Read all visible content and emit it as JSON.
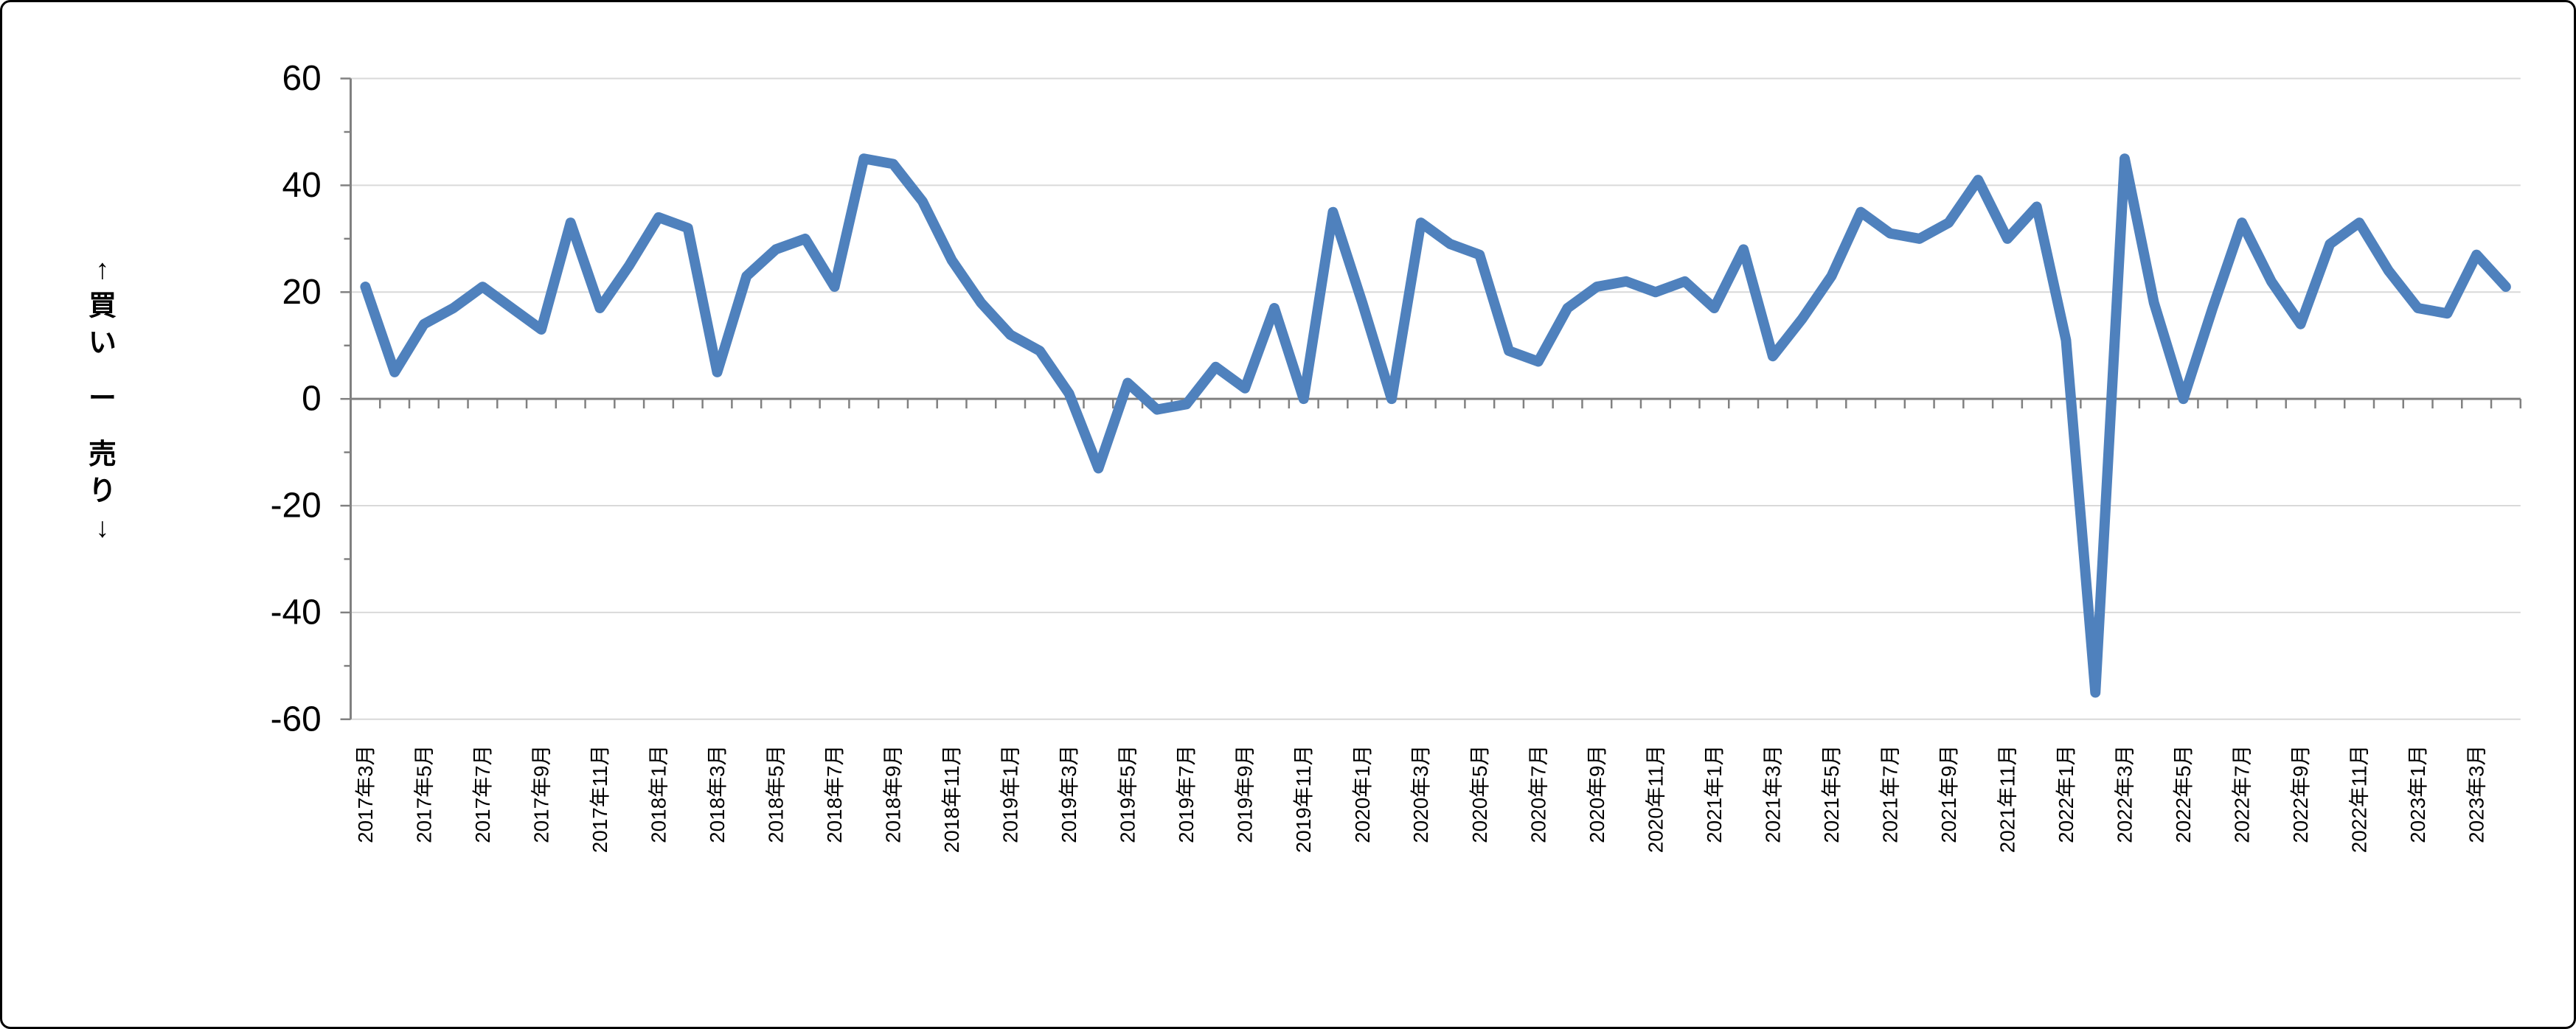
{
  "page": {
    "background": "#ffffff",
    "border_color": "#000000"
  },
  "chart_data": {
    "type": "line",
    "title": "",
    "legend": false,
    "grid": true,
    "colors": {
      "series": "#4F81BD",
      "gridline": "#D9D9D9",
      "axis": "#808080",
      "text": "#000000"
    },
    "y_axis": {
      "title": "↑買い ー 売り↓",
      "min": -60,
      "max": 60,
      "major_unit": 20,
      "minor_unit": 10,
      "tick_labels": [
        "60",
        "40",
        "20",
        "0",
        "-20",
        "-40",
        "-60"
      ]
    },
    "x_axis": {
      "label_interval": 2,
      "first_label": "2017年3月",
      "last_label": "2023年3月"
    },
    "categories": [
      "2017年3月",
      "2017年4月",
      "2017年5月",
      "2017年6月",
      "2017年7月",
      "2017年8月",
      "2017年9月",
      "2017年10月",
      "2017年11月",
      "2017年12月",
      "2018年1月",
      "2018年2月",
      "2018年3月",
      "2018年4月",
      "2018年5月",
      "2018年6月",
      "2018年7月",
      "2018年8月",
      "2018年9月",
      "2018年10月",
      "2018年11月",
      "2018年12月",
      "2019年1月",
      "2019年2月",
      "2019年3月",
      "2019年4月",
      "2019年5月",
      "2019年6月",
      "2019年7月",
      "2019年8月",
      "2019年9月",
      "2019年10月",
      "2019年11月",
      "2019年12月",
      "2020年1月",
      "2020年2月",
      "2020年3月",
      "2020年4月",
      "2020年5月",
      "2020年6月",
      "2020年7月",
      "2020年8月",
      "2020年9月",
      "2020年10月",
      "2020年11月",
      "2020年12月",
      "2021年1月",
      "2021年2月",
      "2021年3月",
      "2021年4月",
      "2021年5月",
      "2021年6月",
      "2021年7月",
      "2021年8月",
      "2021年9月",
      "2021年10月",
      "2021年11月",
      "2021年12月",
      "2022年1月",
      "2022年2月",
      "2022年3月",
      "2022年4月",
      "2022年5月",
      "2022年6月",
      "2022年7月",
      "2022年8月",
      "2022年9月",
      "2022年10月",
      "2022年11月",
      "2022年12月",
      "2023年1月",
      "2023年2月",
      "2023年3月",
      "2023年4月"
    ],
    "values": [
      21,
      5,
      14,
      17,
      21,
      17,
      13,
      33,
      17,
      25,
      34,
      32,
      5,
      23,
      28,
      30,
      21,
      45,
      44,
      37,
      26,
      18,
      12,
      9,
      1,
      -13,
      3,
      -2,
      -1,
      6,
      2,
      17,
      0,
      35,
      18,
      0,
      33,
      29,
      27,
      9,
      7,
      17,
      21,
      22,
      20,
      22,
      17,
      28,
      8,
      15,
      23,
      35,
      31,
      30,
      33,
      41,
      30,
      36,
      11,
      -55,
      45,
      18,
      0,
      17,
      33,
      22,
      14,
      29,
      33,
      24,
      17,
      16,
      27,
      21
    ]
  },
  "layout_note": "vertical axis title reads: up-arrow 買い (buy) dash 売り (sell) down-arrow"
}
